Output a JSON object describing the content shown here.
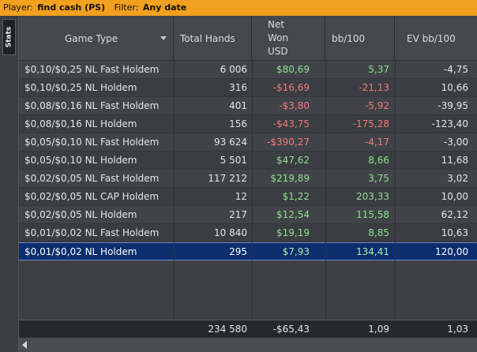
{
  "filter_bar": {
    "player_label": "Player:",
    "player_value": "find cash (PS)",
    "filter_label": "Filter:",
    "filter_value": "Any date"
  },
  "side_tab": {
    "label": "Stats"
  },
  "columns": [
    {
      "label": "Game Type"
    },
    {
      "label": "Total Hands"
    },
    {
      "label": "Net Won USD",
      "lines": [
        "Net",
        "Won",
        "USD"
      ]
    },
    {
      "label": "bb/100"
    },
    {
      "label": "EV bb/100"
    }
  ],
  "rows": [
    {
      "game": "$0,10/$0,25 NL Fast Holdem",
      "hands": "6 006",
      "net": "$80,69",
      "net_sign": "pos",
      "bb100": "5,37",
      "bb_sign": "pos",
      "ev": "-4,75"
    },
    {
      "game": "$0,10/$0,25 NL Holdem",
      "hands": "316",
      "net": "-$16,69",
      "net_sign": "neg",
      "bb100": "-21,13",
      "bb_sign": "neg",
      "ev": "10,66"
    },
    {
      "game": "$0,08/$0,16 NL Fast Holdem",
      "hands": "401",
      "net": "-$3,80",
      "net_sign": "neg",
      "bb100": "-5,92",
      "bb_sign": "neg",
      "ev": "-39,95"
    },
    {
      "game": "$0,08/$0,16 NL Holdem",
      "hands": "156",
      "net": "-$43,75",
      "net_sign": "neg",
      "bb100": "-175,28",
      "bb_sign": "neg",
      "ev": "-123,40"
    },
    {
      "game": "$0,05/$0,10 NL Fast Holdem",
      "hands": "93 624",
      "net": "-$390,27",
      "net_sign": "neg",
      "bb100": "-4,17",
      "bb_sign": "neg",
      "ev": "-3,00"
    },
    {
      "game": "$0,05/$0,10 NL Holdem",
      "hands": "5 501",
      "net": "$47,62",
      "net_sign": "pos",
      "bb100": "8,66",
      "bb_sign": "pos",
      "ev": "11,68"
    },
    {
      "game": "$0,02/$0,05 NL Fast Holdem",
      "hands": "117 212",
      "net": "$219,89",
      "net_sign": "pos",
      "bb100": "3,75",
      "bb_sign": "pos",
      "ev": "3,02"
    },
    {
      "game": "$0,02/$0,05 NL CAP Holdem",
      "hands": "12",
      "net": "$1,22",
      "net_sign": "pos",
      "bb100": "203,33",
      "bb_sign": "pos",
      "ev": "10,00"
    },
    {
      "game": "$0,02/$0,05 NL Holdem",
      "hands": "217",
      "net": "$12,54",
      "net_sign": "pos",
      "bb100": "115,58",
      "bb_sign": "pos",
      "ev": "62,12"
    },
    {
      "game": "$0,01/$0,02 NL Fast Holdem",
      "hands": "10 840",
      "net": "$19,19",
      "net_sign": "pos",
      "bb100": "8,85",
      "bb_sign": "pos",
      "ev": "10,63"
    },
    {
      "game": "$0,01/$0,02 NL Holdem",
      "hands": "295",
      "net": "$7,93",
      "net_sign": "pos",
      "bb100": "134,41",
      "bb_sign": "pos",
      "ev": "120,00",
      "selected": true
    }
  ],
  "totals": {
    "hands": "234 580",
    "net": "-$65,43",
    "bb100": "1,09",
    "ev": "1,03"
  },
  "colors": {
    "filter_bar": "#f2a020",
    "positive": "#8fe08f",
    "negative": "#f07b7b",
    "selected_row": "#0b2e6e"
  }
}
